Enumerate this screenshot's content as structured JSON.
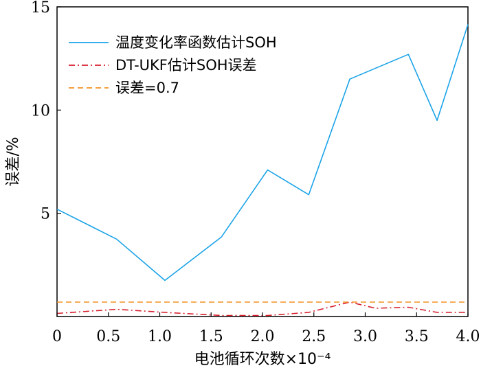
{
  "chart_data": {
    "type": "line",
    "xlabel": "电池循环次数×10⁻⁴",
    "ylabel": "误差/%",
    "xlim": [
      0,
      4.0
    ],
    "ylim": [
      0,
      15
    ],
    "x_ticks": [
      0,
      0.5,
      1.0,
      1.5,
      2.0,
      2.5,
      3.0,
      3.5,
      4.0
    ],
    "x_tick_labels": [
      "0",
      "0.5",
      "1.0",
      "1.5",
      "2.0",
      "2.5",
      "3.0",
      "3.5",
      "4.0"
    ],
    "y_ticks": [
      5,
      10,
      15
    ],
    "y_tick_labels": [
      "5",
      "10",
      "15"
    ],
    "grid": false,
    "legend_position": "top-left",
    "series": [
      {
        "name": "温度变化率函数估计SOH",
        "color": "#1aa3e8",
        "style": "solid",
        "x": [
          0,
          0.58,
          1.05,
          1.6,
          2.05,
          2.45,
          2.85,
          3.42,
          3.7,
          4.0
        ],
        "y": [
          5.2,
          3.75,
          1.75,
          3.85,
          7.1,
          5.9,
          11.5,
          12.7,
          9.5,
          14.15
        ]
      },
      {
        "name": "DT-UKF估计SOH误差",
        "color": "#d61f2c",
        "style": "dashdot",
        "x": [
          0,
          0.58,
          1.05,
          1.6,
          2.05,
          2.45,
          2.85,
          3.1,
          3.42,
          3.7,
          4.0
        ],
        "y": [
          0.15,
          0.35,
          0.2,
          0.05,
          0.05,
          0.2,
          0.7,
          0.4,
          0.45,
          0.2,
          0.2
        ]
      },
      {
        "name": "误差=0.7",
        "color": "#f39021",
        "style": "dashed",
        "x": [
          0,
          4.0
        ],
        "y": [
          0.7,
          0.7
        ]
      }
    ]
  }
}
